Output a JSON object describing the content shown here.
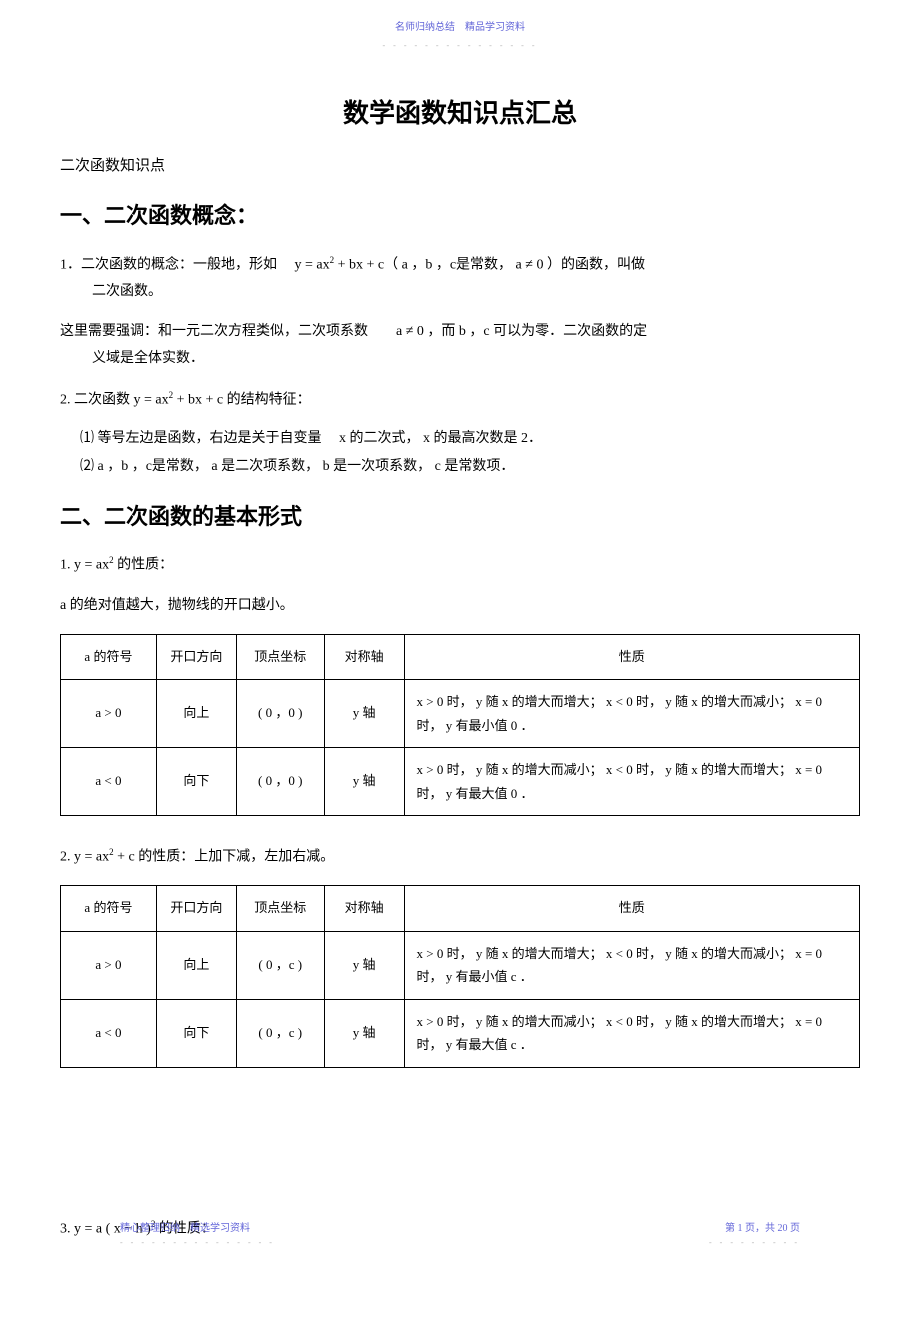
{
  "header": {
    "text": "名师归纳总结　精品学习资料",
    "dots": "- - - - - - - - - - - - - - -"
  },
  "title": "数学函数知识点汇总",
  "subtitle": "二次函数知识点",
  "section1": {
    "heading": "一、二次函数概念：",
    "item1_prefix": "1．二次函数的概念：一般地，形如　 y = ax",
    "item1_sup": "2",
    "item1_mid": " + bx + c（ a ，b ，c是常数， a ≠ 0 ）的函数，叫做",
    "item1_line2": "二次函数。",
    "note_prefix": "这里需要强调：和一元二次方程类似，二次项系数　　a ≠ 0 ，而 b ，c 可以为零．二次函数的定",
    "note_line2": "义域是全体实数．",
    "item2_prefix": "2. 二次函数 y = ax",
    "item2_sup": "2",
    "item2_suffix": " + bx + c 的结构特征：",
    "sub1": "⑴ 等号左边是函数，右边是关于自变量　 x 的二次式， x 的最高次数是 2．",
    "sub2": "⑵ a ，b ，c是常数， a 是二次项系数， b 是一次项系数， c 是常数项．"
  },
  "section2": {
    "heading": "二、二次函数的基本形式",
    "item1_prefix": "1. y = ax",
    "item1_sup": "2",
    "item1_suffix": " 的性质：",
    "note1": "a 的绝对值越大，抛物线的开口越小。",
    "item2_prefix": "2. y = ax",
    "item2_sup": "2",
    "item2_suffix": " + c 的性质：上加下减，左加右减。",
    "item3_prefix": "3. y = a ( x − h )",
    "item3_sup": "2",
    "item3_suffix": " 的性质："
  },
  "table_headers": {
    "sign": "a 的符号",
    "direction": "开口方向",
    "vertex": "顶点坐标",
    "axis": "对称轴",
    "property": "性质"
  },
  "table1": {
    "rows": [
      {
        "sign": "a > 0",
        "direction": "向上",
        "vertex": "( 0 ，0 )",
        "axis": "y 轴",
        "property": "x > 0 时， y 随 x 的增大而增大； x < 0 时， y 随 x 的增大而减小； x = 0 时， y 有最小值 0 ．"
      },
      {
        "sign": "a < 0",
        "direction": "向下",
        "vertex": "( 0 ，0 )",
        "axis": "y 轴",
        "property": "x > 0 时， y 随 x 的增大而减小； x < 0 时， y 随 x 的增大而增大； x = 0 时， y 有最大值 0 ．"
      }
    ]
  },
  "table2": {
    "rows": [
      {
        "sign": "a > 0",
        "direction": "向上",
        "vertex": "( 0 ，c )",
        "axis": "y 轴",
        "property": "x > 0 时， y 随 x 的增大而增大； x < 0 时， y 随 x 的增大而减小； x = 0 时， y 有最小值 c ．"
      },
      {
        "sign": "a < 0",
        "direction": "向下",
        "vertex": "( 0 ，c )",
        "axis": "y 轴",
        "property": "x > 0 时， y 随 x 的增大而减小； x < 0 时， y 随 x 的增大而增大； x = 0 时， y 有最大值 c ．"
      }
    ]
  },
  "footer": {
    "left": "精心整理归纳　精选学习资料",
    "left_dots": "- - - - - - - - - - - - - - -",
    "right": "第 1 页，共 20 页",
    "right_dots": "- - - - - - - - -"
  }
}
